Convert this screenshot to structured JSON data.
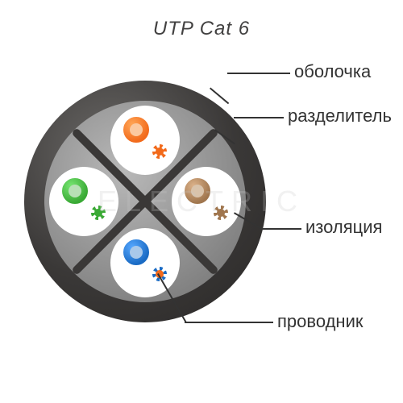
{
  "title": {
    "text": "UTP Cat 6",
    "fontsize": 24,
    "color": "#424141"
  },
  "watermark": {
    "text": "ELECTRIC",
    "fontsize": 36,
    "color_rgba": "rgba(200,200,200,0.25)"
  },
  "labels": {
    "jacket": "оболочка",
    "separator": "разделитель",
    "insulation": "изоляция",
    "conductor": "проводник",
    "fontsize": 22,
    "color": "#333333"
  },
  "diagram": {
    "jacket_color": "#3a3837",
    "inner_bg": "#8d8d8d",
    "separator_color": "#3a3837",
    "pairs": [
      {
        "pos": "top",
        "bg": "#ffffff",
        "solid": "#f26a1b",
        "core_solid": "#fbc9a0",
        "stripe_base": "#ffffff",
        "stripe_accent": "#f26a1b",
        "core_stripe": "#f26a1b"
      },
      {
        "pos": "right",
        "bg": "#ffffff",
        "solid": "#a0764e",
        "core_solid": "#d9c3ab",
        "stripe_base": "#ffffff",
        "stripe_accent": "#a0764e",
        "core_stripe": "#a0764e"
      },
      {
        "pos": "bottom",
        "bg": "#ffffff",
        "solid": "#1a6bc4",
        "core_solid": "#a8c8ea",
        "stripe_base": "#ffffff",
        "stripe_accent": "#1a6bc4",
        "core_stripe": "#f26a1b"
      },
      {
        "pos": "left",
        "bg": "#ffffff",
        "solid": "#3aa935",
        "core_solid": "#b8e0b6",
        "stripe_base": "#ffffff",
        "stripe_accent": "#3aa935",
        "core_stripe": "#3aa935"
      }
    ]
  }
}
